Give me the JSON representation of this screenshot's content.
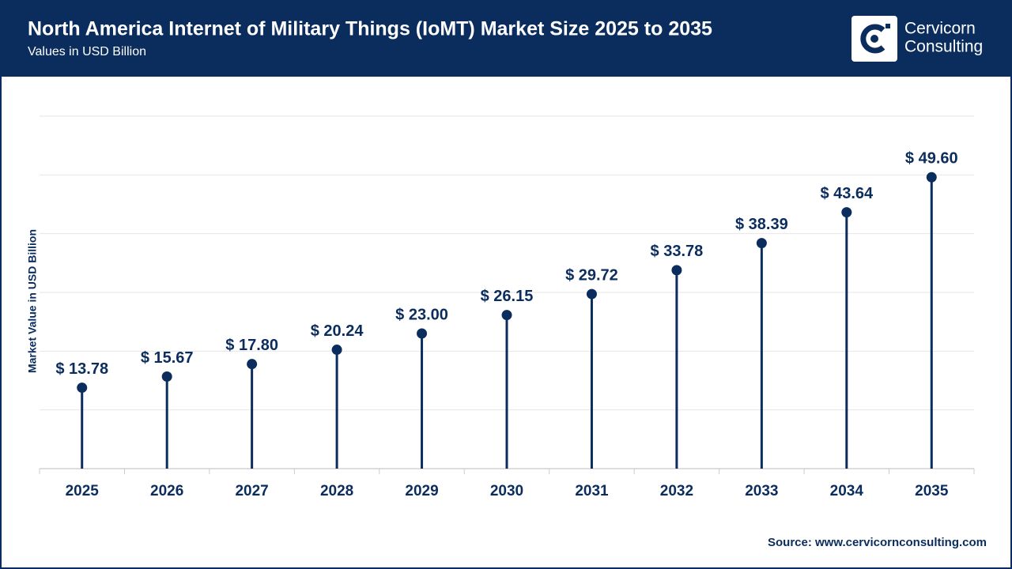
{
  "chart_data": {
    "type": "lollipop",
    "title": "North America Internet of Military Things (IoMT) Market Size 2025 to 2035",
    "subtitle": "Values in USD Billion",
    "y_label": "Market Value in USD Billion",
    "source": "Source: www.cervicornconsulting.com",
    "brand": [
      "Cervicorn",
      "Consulting"
    ],
    "categories": [
      "2025",
      "2026",
      "2027",
      "2028",
      "2029",
      "2030",
      "2031",
      "2032",
      "2033",
      "2034",
      "2035"
    ],
    "values": [
      13.78,
      15.67,
      17.8,
      20.24,
      23.0,
      26.15,
      29.72,
      33.78,
      38.39,
      43.64,
      49.6
    ],
    "value_labels": [
      "$ 13.78",
      "$ 15.67",
      "$ 17.80",
      "$ 20.24",
      "$ 23.00",
      "$ 26.15",
      "$ 29.72",
      "$ 33.78",
      "$ 38.39",
      "$ 43.64",
      "$ 49.60"
    ],
    "color": "#0b2d5e",
    "ylim": [
      0,
      60
    ],
    "yticks": [
      0,
      10,
      20,
      30,
      40,
      50,
      60
    ],
    "grid": true
  }
}
